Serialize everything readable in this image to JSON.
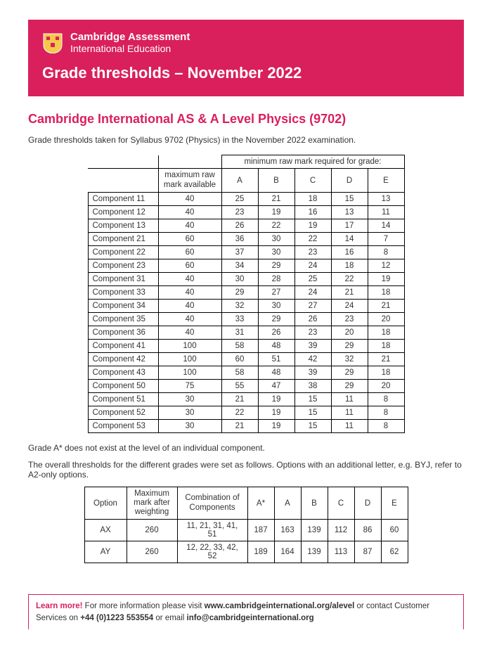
{
  "header": {
    "org_line1": "Cambridge Assessment",
    "org_line2": "International Education",
    "title": "Grade thresholds – November 2022"
  },
  "subject_title": "Cambridge International AS & A Level Physics (9702)",
  "intro": "Grade thresholds taken for Syllabus 9702 (Physics) in the November 2022 examination.",
  "table1": {
    "grade_header": "minimum raw mark required for grade:",
    "max_header": "maximum raw mark available",
    "grades": [
      "A",
      "B",
      "C",
      "D",
      "E"
    ],
    "rows": [
      {
        "c": "Component 11",
        "m": "40",
        "v": [
          "25",
          "21",
          "18",
          "15",
          "13"
        ]
      },
      {
        "c": "Component 12",
        "m": "40",
        "v": [
          "23",
          "19",
          "16",
          "13",
          "11"
        ]
      },
      {
        "c": "Component 13",
        "m": "40",
        "v": [
          "26",
          "22",
          "19",
          "17",
          "14"
        ]
      },
      {
        "c": "Component 21",
        "m": "60",
        "v": [
          "36",
          "30",
          "22",
          "14",
          "7"
        ]
      },
      {
        "c": "Component 22",
        "m": "60",
        "v": [
          "37",
          "30",
          "23",
          "16",
          "8"
        ]
      },
      {
        "c": "Component 23",
        "m": "60",
        "v": [
          "34",
          "29",
          "24",
          "18",
          "12"
        ]
      },
      {
        "c": "Component 31",
        "m": "40",
        "v": [
          "30",
          "28",
          "25",
          "22",
          "19"
        ]
      },
      {
        "c": "Component 33",
        "m": "40",
        "v": [
          "29",
          "27",
          "24",
          "21",
          "18"
        ]
      },
      {
        "c": "Component 34",
        "m": "40",
        "v": [
          "32",
          "30",
          "27",
          "24",
          "21"
        ]
      },
      {
        "c": "Component 35",
        "m": "40",
        "v": [
          "33",
          "29",
          "26",
          "23",
          "20"
        ]
      },
      {
        "c": "Component 36",
        "m": "40",
        "v": [
          "31",
          "26",
          "23",
          "20",
          "18"
        ]
      },
      {
        "c": "Component 41",
        "m": "100",
        "v": [
          "58",
          "48",
          "39",
          "29",
          "18"
        ]
      },
      {
        "c": "Component 42",
        "m": "100",
        "v": [
          "60",
          "51",
          "42",
          "32",
          "21"
        ]
      },
      {
        "c": "Component 43",
        "m": "100",
        "v": [
          "58",
          "48",
          "39",
          "29",
          "18"
        ]
      },
      {
        "c": "Component 50",
        "m": "75",
        "v": [
          "55",
          "47",
          "38",
          "29",
          "20"
        ]
      },
      {
        "c": "Component 51",
        "m": "30",
        "v": [
          "21",
          "19",
          "15",
          "11",
          "8"
        ]
      },
      {
        "c": "Component 52",
        "m": "30",
        "v": [
          "22",
          "19",
          "15",
          "11",
          "8"
        ]
      },
      {
        "c": "Component 53",
        "m": "30",
        "v": [
          "21",
          "19",
          "15",
          "11",
          "8"
        ]
      }
    ]
  },
  "note1": "Grade A* does not exist at the level of an individual component.",
  "note2": "The overall thresholds for the different grades were set as follows. Options with an additional letter, e.g. BYJ, refer to A2-only options.",
  "table2": {
    "headers": {
      "option": "Option",
      "maxw": "Maximum mark after weighting",
      "comb": "Combination of Components"
    },
    "grades": [
      "A*",
      "A",
      "B",
      "C",
      "D",
      "E"
    ],
    "rows": [
      {
        "o": "AX",
        "m": "260",
        "c": "11, 21, 31, 41, 51",
        "v": [
          "187",
          "163",
          "139",
          "112",
          "86",
          "60"
        ]
      },
      {
        "o": "AY",
        "m": "260",
        "c": "12, 22, 33, 42, 52",
        "v": [
          "189",
          "164",
          "139",
          "113",
          "87",
          "62"
        ]
      }
    ]
  },
  "footer": {
    "lead": "Learn more!",
    "text1": " For more information please visit ",
    "url": "www.cambridgeinternational.org/alevel",
    "text2": " or contact Customer Services on ",
    "phone": "+44 (0)1223 553554",
    "text3": " or email ",
    "email": "info@cambridgeinternational.org"
  },
  "colors": {
    "brand": "#d91f5c",
    "text": "#333333",
    "border": "#000000",
    "bg": "#ffffff"
  }
}
